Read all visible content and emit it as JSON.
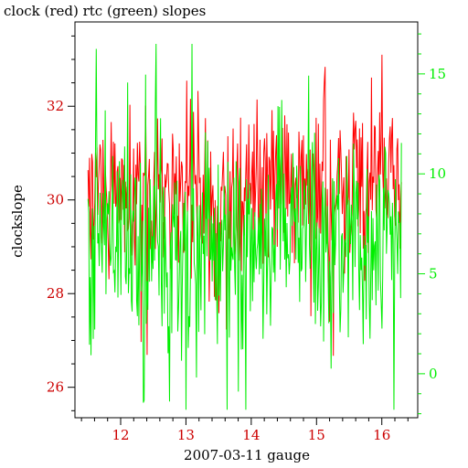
{
  "chart_data": {
    "type": "line",
    "title": "clock (red) rtc (green) slopes",
    "xlabel": "2007-03-11 gauge",
    "ylabel": "clockslope",
    "xlim": [
      11.3,
      16.55
    ],
    "xticks": [
      12,
      13,
      14,
      15,
      16
    ],
    "xtick_labels": [
      "12",
      "13",
      "14",
      "15",
      "16"
    ],
    "ylim_left": [
      25.35,
      33.8
    ],
    "yticks_left": [
      26,
      28,
      30,
      32
    ],
    "ytick_labels_left": [
      "26",
      "28",
      "30",
      "32"
    ],
    "ylim_right": [
      -2.2,
      17.6
    ],
    "yticks_right": [
      0,
      5,
      10,
      15
    ],
    "ytick_labels_right": [
      "0",
      "5",
      "10",
      "15"
    ],
    "grid": false,
    "legend": "none",
    "colors": {
      "clock": "#ff0000",
      "rtc": "#00ee00",
      "axis": "#000000",
      "left_ticks": "#cc0000",
      "right_ticks": "#00ee00"
    },
    "series": [
      {
        "axis": "left",
        "color": "#ff0000",
        "x_start": 11.5,
        "x_end": 16.3,
        "n": 420,
        "mean": 30.2,
        "spread": 0.9,
        "min": 25.8,
        "max": 33.1
      },
      {
        "axis": "right",
        "color": "#00ee00",
        "x_start": 11.5,
        "x_end": 16.3,
        "n": 420,
        "mean": 6.5,
        "spread": 2.6,
        "min": -1.8,
        "max": 16.5
      }
    ]
  }
}
